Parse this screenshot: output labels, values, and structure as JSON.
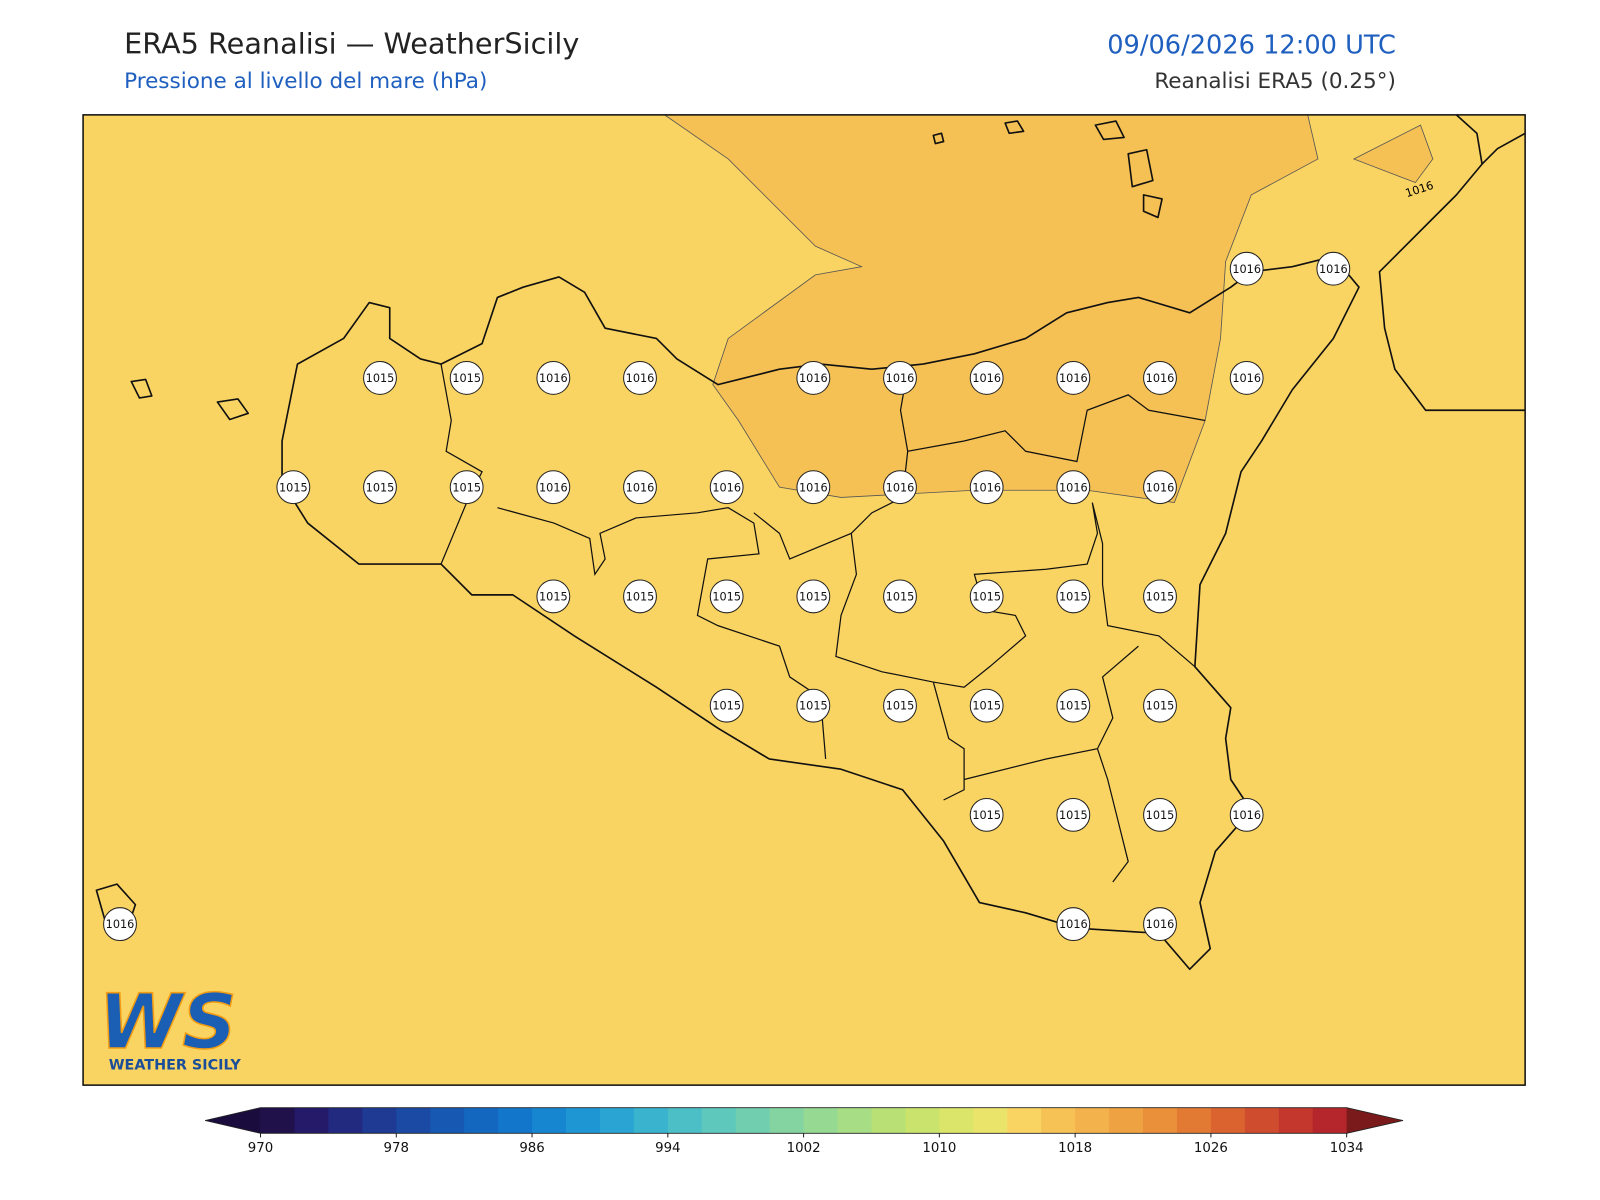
{
  "header": {
    "title": "ERA5 Reanalisi — WeatherSicily",
    "subtitle": "Pressione al livello del mare (hPa)",
    "datetime": "09/06/2026 12:00 UTC",
    "source": "Reanalisi ERA5 (0.25°)"
  },
  "map": {
    "background_color": "#fad462",
    "high_area_color": "#f5c054",
    "contour_label": "1016",
    "stations": [
      [
        null,
        null,
        null,
        null,
        null,
        null,
        null,
        null,
        null,
        null,
        null,
        null,
        null,
        1016,
        1016
      ],
      [
        null,
        null,
        null,
        1015,
        1015,
        1016,
        1016,
        null,
        1016,
        1016,
        1016,
        1016,
        1016,
        1016,
        null
      ],
      [
        null,
        null,
        1015,
        1015,
        1015,
        1016,
        1016,
        1016,
        1016,
        1016,
        1016,
        1016,
        1016,
        null,
        null
      ],
      [
        null,
        null,
        null,
        null,
        null,
        1015,
        1015,
        1015,
        1015,
        1015,
        1015,
        1015,
        1015,
        null,
        null
      ],
      [
        null,
        null,
        null,
        null,
        null,
        null,
        null,
        1015,
        1015,
        1015,
        1015,
        1015,
        1015,
        null,
        null
      ],
      [
        null,
        null,
        null,
        null,
        null,
        null,
        null,
        null,
        null,
        null,
        1015,
        1015,
        1015,
        1016,
        null
      ],
      [
        1016,
        null,
        null,
        null,
        null,
        null,
        null,
        null,
        null,
        null,
        null,
        1016,
        1016,
        null,
        null
      ]
    ]
  },
  "logo": {
    "text": "WS",
    "caption": "WEATHER SICILY"
  },
  "colorbar": {
    "lim": [
      970,
      1034
    ],
    "ticks": [
      970,
      978,
      986,
      994,
      1002,
      1010,
      1018,
      1026,
      1034
    ],
    "under_color": "#1a0d3d",
    "over_color": "#7a1a1a",
    "colors": [
      "#20114b",
      "#25196a",
      "#222a80",
      "#1e3a92",
      "#1a4aa3",
      "#1758b2",
      "#1467bf",
      "#1276ca",
      "#1686d1",
      "#1f96d4",
      "#2aa5d3",
      "#39b3ce",
      "#4cbfc6",
      "#5ec8bc",
      "#71cfb0",
      "#84d4a2",
      "#96d993",
      "#a7dd84",
      "#b8e075",
      "#c9e36c",
      "#dae56a",
      "#ebe46b",
      "#fad462",
      "#f6c256",
      "#f3b24b",
      "#efa241",
      "#ea8f3a",
      "#e37a34",
      "#da6330",
      "#cf4c2e",
      "#c3372d",
      "#b4262b"
    ]
  }
}
